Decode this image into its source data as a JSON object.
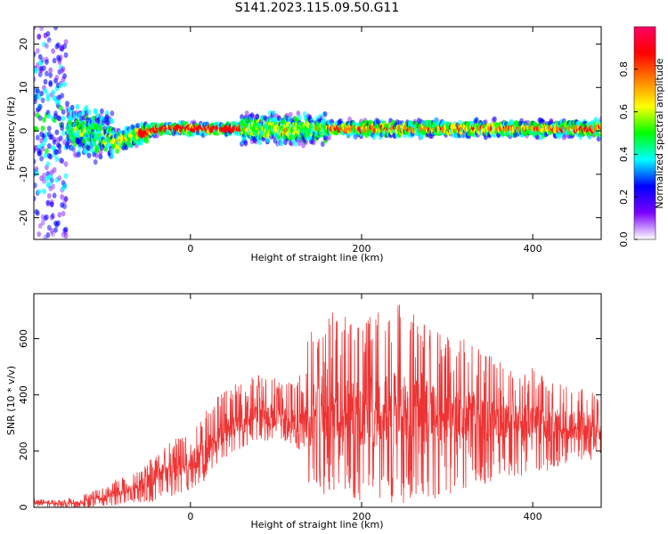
{
  "title": "S141.2023.115.09.50.G11",
  "chart_data": [
    {
      "type": "heatmap",
      "xlabel": "Height of straight line (km)",
      "ylabel": "Frequency (Hz)",
      "xlim": [
        -183,
        480
      ],
      "ylim": [
        -25,
        24
      ],
      "xticks": [
        0,
        200,
        400
      ],
      "yticks": [
        -20,
        -10,
        0,
        10,
        20
      ],
      "ridge": {
        "x": [
          -150,
          -120,
          -100,
          -85,
          -70,
          -55,
          -40,
          0,
          50,
          100,
          150,
          200,
          250,
          300,
          350,
          400,
          450,
          480
        ],
        "frequency": [
          0,
          0,
          -1.5,
          -2.5,
          -1.5,
          -0.5,
          0.5,
          0.5,
          0.5,
          0.5,
          0.5,
          0.5,
          0.5,
          0.5,
          0.5,
          0.5,
          0.5,
          0.5
        ]
      },
      "colorbar": {
        "label": "Normalized spectral amplitude",
        "range": [
          0,
          1
        ],
        "ticks": [
          "0.0",
          "0.2",
          "0.4",
          "0.6",
          "0.8"
        ],
        "colors": [
          "#ffffff",
          "#7b00ff",
          "#0000ff",
          "#00ffff",
          "#00ff00",
          "#ffff00",
          "#ff8000",
          "#ff0000",
          "#ff0066"
        ]
      }
    },
    {
      "type": "line",
      "xlabel": "Height of straight line (km)",
      "ylabel": "SNR (10 * v/v)",
      "xlim": [
        -183,
        480
      ],
      "ylim": [
        0,
        760
      ],
      "xticks": [
        0,
        200,
        400
      ],
      "yticks": [
        0,
        200,
        400,
        600
      ],
      "color": "#ee3333",
      "envelope": {
        "x": [
          -183,
          -150,
          -120,
          -100,
          -80,
          -60,
          -40,
          -20,
          0,
          20,
          40,
          60,
          80,
          100,
          120,
          130,
          140,
          160,
          180,
          200,
          220,
          240,
          260,
          280,
          300,
          320,
          340,
          360,
          380,
          400,
          420,
          440,
          460,
          480
        ],
        "mean": [
          15,
          15,
          20,
          40,
          60,
          80,
          110,
          140,
          160,
          210,
          270,
          300,
          330,
          320,
          310,
          300,
          340,
          350,
          340,
          330,
          340,
          350,
          340,
          340,
          320,
          320,
          310,
          300,
          300,
          300,
          300,
          290,
          280,
          270
        ],
        "max": [
          30,
          25,
          50,
          80,
          110,
          130,
          190,
          240,
          280,
          350,
          430,
          450,
          470,
          460,
          450,
          480,
          640,
          690,
          700,
          660,
          700,
          760,
          700,
          640,
          620,
          600,
          560,
          520,
          480,
          500,
          450,
          440,
          420,
          400
        ],
        "min": [
          0,
          0,
          0,
          5,
          10,
          15,
          20,
          40,
          60,
          100,
          170,
          200,
          240,
          230,
          220,
          200,
          60,
          30,
          20,
          20,
          10,
          10,
          20,
          20,
          40,
          60,
          80,
          100,
          110,
          110,
          130,
          160,
          170,
          160
        ]
      }
    }
  ]
}
